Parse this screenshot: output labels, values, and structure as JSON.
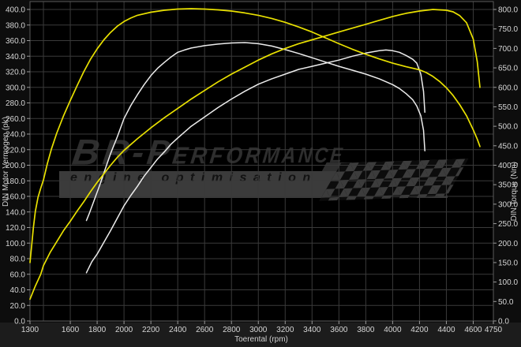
{
  "watermark": {
    "line1": "BR-Performance",
    "line2": "engine optimisation"
  },
  "chart_data": {
    "type": "line",
    "title": "",
    "grid": true,
    "legend": false,
    "x_axis": {
      "label": "Toerental (rpm)",
      "range": [
        1300,
        4750
      ],
      "ticks": [
        1300,
        1600,
        1800,
        2000,
        2200,
        2400,
        2600,
        2800,
        3000,
        3200,
        3400,
        3600,
        3800,
        4000,
        4200,
        4400,
        4600,
        4750
      ],
      "tick_labels": [
        "1300",
        "1600",
        "1800",
        "2000",
        "2200",
        "2400",
        "2600",
        "2800",
        "3000",
        "3200",
        "3400",
        "3600",
        "3800",
        "4000",
        "4200",
        "4400",
        "4600",
        "4750"
      ],
      "gridline_start": 1400,
      "gridline_step": 200,
      "gridline_end": 4600
    },
    "y_left": {
      "label": "DIN Motor Vermogen (pk)",
      "range": [
        0,
        400
      ],
      "ticks": [
        0,
        20,
        40,
        60,
        80,
        100,
        120,
        140,
        160,
        180,
        200,
        220,
        240,
        260,
        280,
        300,
        320,
        340,
        360,
        380,
        400
      ],
      "tick_labels": [
        "0.0",
        "20.0",
        "40.0",
        "60.0",
        "80.0",
        "100.0",
        "120.0",
        "140.0",
        "160.0",
        "180.0",
        "200.0",
        "220.0",
        "240.0",
        "260.0",
        "280.0",
        "300.0",
        "320.0",
        "340.0",
        "360.0",
        "380.0",
        "400.0"
      ],
      "gridline_step": 20
    },
    "y_right": {
      "label": "DIN Torque (Nm)",
      "range": [
        0,
        800
      ],
      "ticks": [
        0,
        50,
        100,
        150,
        200,
        250,
        300,
        350,
        400,
        450,
        500,
        550,
        600,
        650,
        700,
        750,
        800
      ],
      "tick_labels": [
        "0.0",
        "50.0",
        "100.0",
        "150.0",
        "200.0",
        "250.0",
        "300.0",
        "350.0",
        "400.0",
        "450.0",
        "500.0",
        "550.0",
        "600.0",
        "650.0",
        "700.0",
        "750.0",
        "800.0"
      ]
    },
    "series": [
      {
        "name": "stock-torque",
        "axis": "right",
        "unit": "Nm",
        "color": "#ececec",
        "width": 1.5,
        "points": [
          [
            1720,
            258
          ],
          [
            1740,
            275
          ],
          [
            1780,
            312
          ],
          [
            1820,
            350
          ],
          [
            1860,
            390
          ],
          [
            1900,
            430
          ],
          [
            1950,
            473
          ],
          [
            2000,
            520
          ],
          [
            2050,
            553
          ],
          [
            2100,
            581
          ],
          [
            2150,
            607
          ],
          [
            2200,
            630
          ],
          [
            2250,
            649
          ],
          [
            2300,
            664
          ],
          [
            2350,
            678
          ],
          [
            2400,
            690
          ],
          [
            2450,
            696
          ],
          [
            2500,
            701
          ],
          [
            2600,
            707
          ],
          [
            2700,
            711
          ],
          [
            2800,
            714
          ],
          [
            2900,
            715
          ],
          [
            3000,
            712
          ],
          [
            3100,
            706
          ],
          [
            3200,
            697
          ],
          [
            3300,
            687
          ],
          [
            3400,
            676
          ],
          [
            3500,
            665
          ],
          [
            3600,
            654
          ],
          [
            3700,
            644
          ],
          [
            3800,
            634
          ],
          [
            3900,
            622
          ],
          [
            4000,
            607
          ],
          [
            4050,
            597
          ],
          [
            4100,
            584
          ],
          [
            4150,
            568
          ],
          [
            4180,
            552
          ],
          [
            4210,
            527
          ],
          [
            4230,
            490
          ],
          [
            4240,
            437
          ]
        ]
      },
      {
        "name": "stock-power",
        "axis": "left",
        "unit": "pk",
        "color": "#ececec",
        "width": 1.5,
        "points": [
          [
            1720,
            62
          ],
          [
            1760,
            76
          ],
          [
            1800,
            86
          ],
          [
            1850,
            101
          ],
          [
            1900,
            116
          ],
          [
            1950,
            132
          ],
          [
            2000,
            148
          ],
          [
            2050,
            161
          ],
          [
            2100,
            173
          ],
          [
            2150,
            186
          ],
          [
            2200,
            197
          ],
          [
            2250,
            208
          ],
          [
            2300,
            217
          ],
          [
            2350,
            227
          ],
          [
            2400,
            235
          ],
          [
            2500,
            250
          ],
          [
            2600,
            262
          ],
          [
            2700,
            274
          ],
          [
            2800,
            285
          ],
          [
            2900,
            295
          ],
          [
            3000,
            304
          ],
          [
            3100,
            311
          ],
          [
            3200,
            317
          ],
          [
            3300,
            323
          ],
          [
            3400,
            327
          ],
          [
            3500,
            331
          ],
          [
            3600,
            335
          ],
          [
            3700,
            340
          ],
          [
            3800,
            344
          ],
          [
            3900,
            347
          ],
          [
            3950,
            348
          ],
          [
            4000,
            347
          ],
          [
            4050,
            345
          ],
          [
            4100,
            341
          ],
          [
            4150,
            336
          ],
          [
            4180,
            331
          ],
          [
            4210,
            317
          ],
          [
            4230,
            295
          ],
          [
            4240,
            268
          ]
        ]
      },
      {
        "name": "tuned-torque",
        "axis": "right",
        "unit": "Nm",
        "color": "#e8e000",
        "width": 1.7,
        "points": [
          [
            1300,
            150
          ],
          [
            1310,
            185
          ],
          [
            1325,
            240
          ],
          [
            1340,
            282
          ],
          [
            1360,
            318
          ],
          [
            1380,
            341
          ],
          [
            1400,
            362
          ],
          [
            1430,
            405
          ],
          [
            1460,
            442
          ],
          [
            1500,
            483
          ],
          [
            1550,
            527
          ],
          [
            1600,
            566
          ],
          [
            1650,
            604
          ],
          [
            1700,
            640
          ],
          [
            1750,
            672
          ],
          [
            1800,
            699
          ],
          [
            1850,
            722
          ],
          [
            1900,
            741
          ],
          [
            1950,
            757
          ],
          [
            2000,
            769
          ],
          [
            2050,
            778
          ],
          [
            2100,
            785
          ],
          [
            2200,
            793
          ],
          [
            2300,
            798
          ],
          [
            2400,
            801
          ],
          [
            2500,
            802
          ],
          [
            2600,
            801
          ],
          [
            2700,
            799
          ],
          [
            2800,
            796
          ],
          [
            2900,
            791
          ],
          [
            3000,
            785
          ],
          [
            3100,
            777
          ],
          [
            3200,
            767
          ],
          [
            3300,
            755
          ],
          [
            3400,
            742
          ],
          [
            3500,
            727
          ],
          [
            3600,
            712
          ],
          [
            3700,
            698
          ],
          [
            3800,
            685
          ],
          [
            3900,
            673
          ],
          [
            4000,
            662
          ],
          [
            4100,
            653
          ],
          [
            4200,
            645
          ],
          [
            4250,
            638
          ],
          [
            4300,
            628
          ],
          [
            4350,
            615
          ],
          [
            4400,
            599
          ],
          [
            4450,
            579
          ],
          [
            4500,
            555
          ],
          [
            4550,
            527
          ],
          [
            4600,
            491
          ],
          [
            4630,
            467
          ],
          [
            4650,
            448
          ]
        ]
      },
      {
        "name": "tuned-power",
        "axis": "left",
        "unit": "pk",
        "color": "#e8e000",
        "width": 1.7,
        "points": [
          [
            1300,
            28
          ],
          [
            1340,
            45
          ],
          [
            1380,
            60
          ],
          [
            1400,
            71
          ],
          [
            1450,
            88
          ],
          [
            1500,
            102
          ],
          [
            1550,
            116
          ],
          [
            1600,
            128
          ],
          [
            1650,
            141
          ],
          [
            1700,
            153
          ],
          [
            1750,
            166
          ],
          [
            1800,
            178
          ],
          [
            1850,
            189
          ],
          [
            1900,
            200
          ],
          [
            1950,
            210
          ],
          [
            2000,
            219
          ],
          [
            2100,
            234
          ],
          [
            2200,
            248
          ],
          [
            2300,
            261
          ],
          [
            2400,
            273
          ],
          [
            2500,
            285
          ],
          [
            2600,
            296
          ],
          [
            2700,
            307
          ],
          [
            2800,
            317
          ],
          [
            2900,
            326
          ],
          [
            3000,
            335
          ],
          [
            3100,
            343
          ],
          [
            3200,
            350
          ],
          [
            3300,
            356
          ],
          [
            3400,
            361
          ],
          [
            3500,
            366
          ],
          [
            3600,
            371
          ],
          [
            3700,
            376
          ],
          [
            3800,
            381
          ],
          [
            3900,
            386
          ],
          [
            4000,
            391
          ],
          [
            4100,
            395
          ],
          [
            4200,
            398
          ],
          [
            4300,
            400
          ],
          [
            4400,
            399
          ],
          [
            4450,
            397
          ],
          [
            4500,
            392
          ],
          [
            4550,
            383
          ],
          [
            4600,
            362
          ],
          [
            4630,
            333
          ],
          [
            4650,
            300
          ]
        ]
      }
    ],
    "colors": {
      "plot_background": "#000000",
      "outer_background": "#0d0d0d",
      "bottom_strip": "#1c1c1c",
      "grid": "#3a3a3a",
      "border": "#5a5a5a",
      "tick_text": "#d6d6d6",
      "tuned_curve": "#e8e000",
      "stock_curve": "#ececec",
      "watermark_text": "#2e2e2e",
      "banner": "#3b3b3b"
    }
  }
}
